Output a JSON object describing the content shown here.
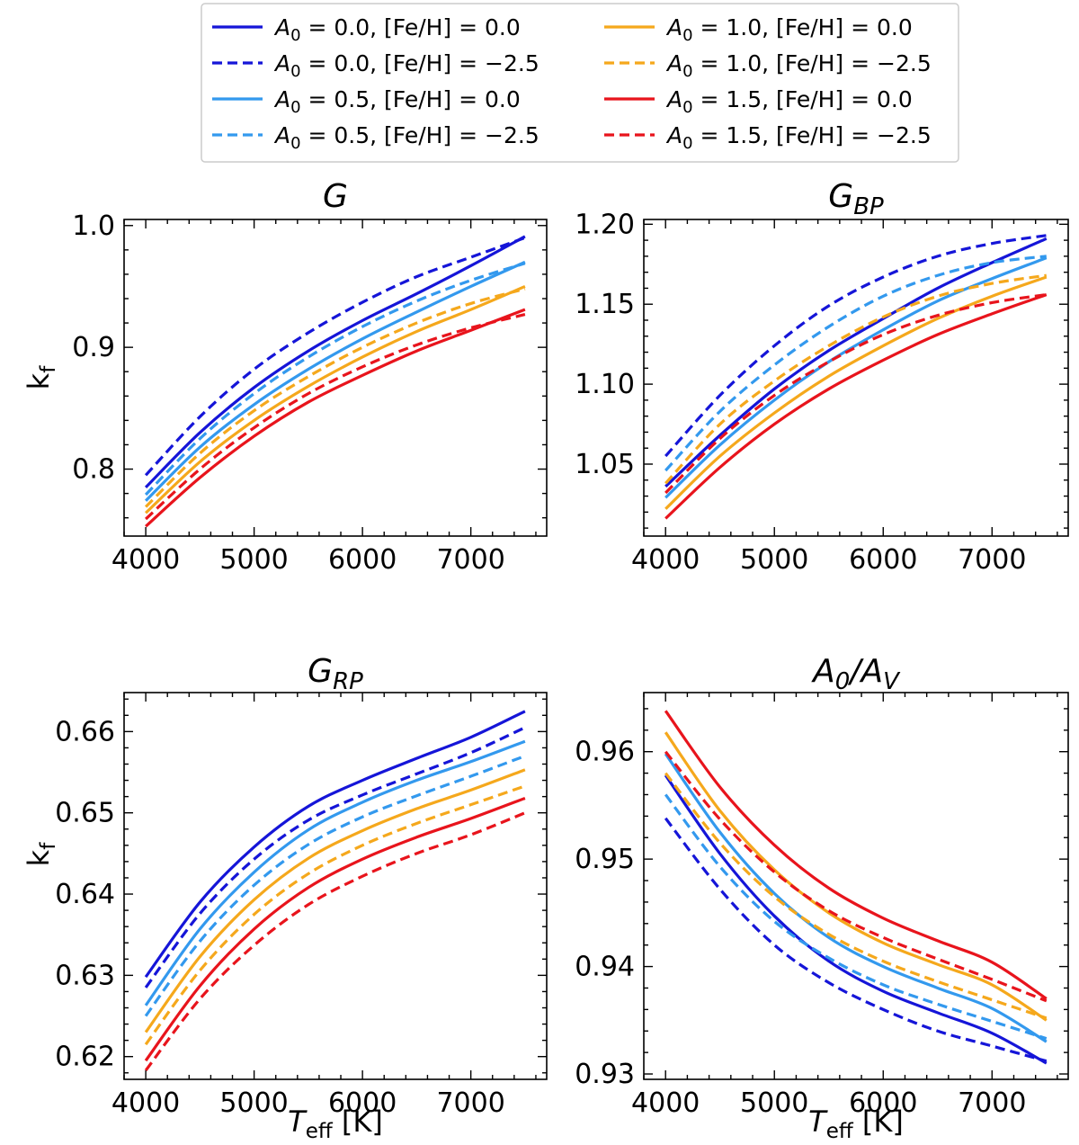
{
  "chart_data": [
    {
      "type": "line",
      "title": "G",
      "xlabel": "",
      "ylabel": "k_f",
      "xlim": [
        3800,
        7700
      ],
      "ylim": [
        0.745,
        1.005
      ],
      "xticks": [
        4000,
        5000,
        6000,
        7000
      ],
      "yticks": [
        0.8,
        0.9,
        1.0
      ],
      "xtick_labels": [
        "4000",
        "5000",
        "6000",
        "7000"
      ],
      "ytick_labels": [
        "0.8",
        "0.9",
        "1.0"
      ],
      "x": [
        4000,
        4500,
        5000,
        5500,
        6000,
        6500,
        7000,
        7500
      ],
      "series": [
        {
          "name": "A0 = 0.0, [Fe/H] = 0.0",
          "values": [
            0.785,
            0.83,
            0.867,
            0.897,
            0.922,
            0.944,
            0.967,
            0.991
          ]
        },
        {
          "name": "A0 = 0.0, [Fe/H] = −2.5",
          "values": [
            0.795,
            0.843,
            0.882,
            0.912,
            0.937,
            0.958,
            0.974,
            0.99
          ]
        },
        {
          "name": "A0 = 0.5, [Fe/H] = 0.0",
          "values": [
            0.774,
            0.818,
            0.853,
            0.882,
            0.907,
            0.929,
            0.95,
            0.97
          ]
        },
        {
          "name": "A0 = 0.5, [Fe/H] = −2.5",
          "values": [
            0.779,
            0.825,
            0.862,
            0.892,
            0.917,
            0.938,
            0.955,
            0.969
          ]
        },
        {
          "name": "A0 = 1.0, [Fe/H] = 0.0",
          "values": [
            0.764,
            0.806,
            0.84,
            0.868,
            0.892,
            0.913,
            0.931,
            0.95
          ]
        },
        {
          "name": "A0 = 1.0, [Fe/H] = −2.5",
          "values": [
            0.769,
            0.813,
            0.848,
            0.876,
            0.9,
            0.92,
            0.936,
            0.948
          ]
        },
        {
          "name": "A0 = 1.5, [Fe/H] = 0.0",
          "values": [
            0.753,
            0.793,
            0.827,
            0.855,
            0.877,
            0.897,
            0.914,
            0.931
          ]
        },
        {
          "name": "A0 = 1.5, [Fe/H] = −2.5",
          "values": [
            0.759,
            0.8,
            0.834,
            0.862,
            0.884,
            0.902,
            0.916,
            0.927
          ]
        }
      ]
    },
    {
      "type": "line",
      "title": "G_BP",
      "xlabel": "",
      "ylabel": "",
      "xlim": [
        3800,
        7700
      ],
      "ylim": [
        1.005,
        1.203
      ],
      "xticks": [
        4000,
        5000,
        6000,
        7000
      ],
      "yticks": [
        1.05,
        1.1,
        1.15,
        1.2
      ],
      "xtick_labels": [
        "4000",
        "5000",
        "6000",
        "7000"
      ],
      "ytick_labels": [
        "1.05",
        "1.10",
        "1.15",
        "1.20"
      ],
      "x": [
        4000,
        4500,
        5000,
        5500,
        6000,
        6500,
        7000,
        7500
      ],
      "series": [
        {
          "name": "A0 = 0.0, [Fe/H] = 0.0",
          "values": [
            1.036,
            1.068,
            1.097,
            1.121,
            1.141,
            1.16,
            1.176,
            1.191
          ]
        },
        {
          "name": "A0 = 0.0, [Fe/H] = −2.5",
          "values": [
            1.055,
            1.093,
            1.124,
            1.149,
            1.167,
            1.18,
            1.188,
            1.193
          ]
        },
        {
          "name": "A0 = 0.5, [Fe/H] = 0.0",
          "values": [
            1.029,
            1.062,
            1.09,
            1.114,
            1.134,
            1.152,
            1.166,
            1.179
          ]
        },
        {
          "name": "A0 = 0.5, [Fe/H] = −2.5",
          "values": [
            1.046,
            1.083,
            1.112,
            1.136,
            1.155,
            1.168,
            1.176,
            1.18
          ]
        },
        {
          "name": "A0 = 1.0, [Fe/H] = 0.0",
          "values": [
            1.022,
            1.055,
            1.082,
            1.105,
            1.124,
            1.141,
            1.155,
            1.167
          ]
        },
        {
          "name": "A0 = 1.0, [Fe/H] = −2.5",
          "values": [
            1.038,
            1.075,
            1.102,
            1.124,
            1.142,
            1.155,
            1.163,
            1.168
          ]
        },
        {
          "name": "A0 = 1.5, [Fe/H] = 0.0",
          "values": [
            1.016,
            1.048,
            1.075,
            1.097,
            1.115,
            1.131,
            1.144,
            1.156
          ]
        },
        {
          "name": "A0 = 1.5, [Fe/H] = −2.5",
          "values": [
            1.032,
            1.066,
            1.093,
            1.114,
            1.131,
            1.143,
            1.151,
            1.156
          ]
        }
      ]
    },
    {
      "type": "line",
      "title": "G_RP",
      "xlabel": "T_eff [K]",
      "ylabel": "k_f",
      "xlim": [
        3800,
        7700
      ],
      "ylim": [
        0.6172,
        0.6648
      ],
      "xticks": [
        4000,
        5000,
        6000,
        7000
      ],
      "yticks": [
        0.62,
        0.63,
        0.64,
        0.65,
        0.66
      ],
      "xtick_labels": [
        "4000",
        "5000",
        "6000",
        "7000"
      ],
      "ytick_labels": [
        "0.62",
        "0.63",
        "0.64",
        "0.65",
        "0.66"
      ],
      "x": [
        4000,
        4500,
        5000,
        5500,
        6000,
        6500,
        7000,
        7500
      ],
      "series": [
        {
          "name": "A0 = 0.0, [Fe/H] = 0.0",
          "values": [
            0.6298,
            0.639,
            0.6458,
            0.6508,
            0.654,
            0.6567,
            0.6593,
            0.6625
          ]
        },
        {
          "name": "A0 = 0.0, [Fe/H] = −2.5",
          "values": [
            0.6285,
            0.6376,
            0.6443,
            0.6491,
            0.6522,
            0.6548,
            0.6574,
            0.6605
          ]
        },
        {
          "name": "A0 = 0.5, [Fe/H] = 0.0",
          "values": [
            0.6263,
            0.6357,
            0.6427,
            0.6479,
            0.6513,
            0.654,
            0.6563,
            0.6588
          ]
        },
        {
          "name": "A0 = 0.5, [Fe/H] = −2.5",
          "values": [
            0.625,
            0.6342,
            0.6411,
            0.6461,
            0.6495,
            0.6521,
            0.6545,
            0.657
          ]
        },
        {
          "name": "A0 = 1.0, [Fe/H] = 0.0",
          "values": [
            0.623,
            0.6323,
            0.6393,
            0.6444,
            0.6478,
            0.6505,
            0.6528,
            0.6553
          ]
        },
        {
          "name": "A0 = 1.0, [Fe/H] = −2.5",
          "values": [
            0.6215,
            0.6306,
            0.6375,
            0.6425,
            0.646,
            0.6487,
            0.651,
            0.6533
          ]
        },
        {
          "name": "A0 = 1.5, [Fe/H] = 0.0",
          "values": [
            0.6195,
            0.6287,
            0.6357,
            0.6408,
            0.6443,
            0.647,
            0.6493,
            0.6518
          ]
        },
        {
          "name": "A0 = 1.5, [Fe/H] = −2.5",
          "values": [
            0.6183,
            0.6271,
            0.6337,
            0.6387,
            0.6422,
            0.645,
            0.6473,
            0.65
          ]
        }
      ]
    },
    {
      "type": "line",
      "title": "A_0/A_V",
      "xlabel": "T_eff [K]",
      "ylabel": "",
      "xlim": [
        3800,
        7700
      ],
      "ylim": [
        0.9295,
        0.9655
      ],
      "xticks": [
        4000,
        5000,
        6000,
        7000
      ],
      "yticks": [
        0.93,
        0.94,
        0.95,
        0.96
      ],
      "xtick_labels": [
        "4000",
        "5000",
        "6000",
        "7000"
      ],
      "ytick_labels": [
        "0.93",
        "0.94",
        "0.95",
        "0.96"
      ],
      "x": [
        4000,
        4500,
        5000,
        5500,
        6000,
        6500,
        7000,
        7500
      ],
      "series": [
        {
          "name": "A0 = 0.0, [Fe/H] = 0.0",
          "values": [
            0.9578,
            0.9505,
            0.9447,
            0.9405,
            0.9377,
            0.9357,
            0.9338,
            0.931
          ]
        },
        {
          "name": "A0 = 0.0, [Fe/H] = −2.5",
          "values": [
            0.9538,
            0.9472,
            0.942,
            0.9385,
            0.936,
            0.934,
            0.9326,
            0.9312
          ]
        },
        {
          "name": "A0 = 0.5, [Fe/H] = 0.0",
          "values": [
            0.9598,
            0.9525,
            0.9468,
            0.9427,
            0.94,
            0.938,
            0.9361,
            0.933
          ]
        },
        {
          "name": "A0 = 0.5, [Fe/H] = −2.5",
          "values": [
            0.956,
            0.9493,
            0.9442,
            0.9408,
            0.9383,
            0.9365,
            0.9349,
            0.9333
          ]
        },
        {
          "name": "A0 = 1.0, [Fe/H] = 0.0",
          "values": [
            0.9618,
            0.9545,
            0.949,
            0.945,
            0.9422,
            0.9402,
            0.9383,
            0.935
          ]
        },
        {
          "name": "A0 = 1.0, [Fe/H] = −2.5",
          "values": [
            0.958,
            0.9515,
            0.9465,
            0.943,
            0.9405,
            0.9386,
            0.9369,
            0.9352
          ]
        },
        {
          "name": "A0 = 1.5, [Fe/H] = 0.0",
          "values": [
            0.9638,
            0.9567,
            0.9513,
            0.9473,
            0.9445,
            0.9424,
            0.9404,
            0.937
          ]
        },
        {
          "name": "A0 = 1.5, [Fe/H] = −2.5",
          "values": [
            0.96,
            0.9537,
            0.9488,
            0.9452,
            0.9427,
            0.9407,
            0.9388,
            0.9368
          ]
        }
      ]
    }
  ],
  "legend": {
    "location": "top-center",
    "entries": [
      {
        "a0": "0.0",
        "feh": "0.0",
        "color": "#1515d8",
        "style": "solid"
      },
      {
        "a0": "0.0",
        "feh": "−2.5",
        "color": "#1515d8",
        "style": "dashed"
      },
      {
        "a0": "0.5",
        "feh": "0.0",
        "color": "#3399ee",
        "style": "solid"
      },
      {
        "a0": "0.5",
        "feh": "−2.5",
        "color": "#3399ee",
        "style": "dashed"
      },
      {
        "a0": "1.0",
        "feh": "0.0",
        "color": "#f5a81c",
        "style": "solid"
      },
      {
        "a0": "1.0",
        "feh": "−2.5",
        "color": "#f5a81c",
        "style": "dashed"
      },
      {
        "a0": "1.5",
        "feh": "0.0",
        "color": "#e8141c",
        "style": "solid"
      },
      {
        "a0": "1.5",
        "feh": "−2.5",
        "color": "#e8141c",
        "style": "dashed"
      }
    ]
  },
  "series_colors": [
    "#1515d8",
    "#1515d8",
    "#3399ee",
    "#3399ee",
    "#f5a81c",
    "#f5a81c",
    "#e8141c",
    "#e8141c"
  ],
  "series_styles": [
    "solid",
    "dashed",
    "solid",
    "dashed",
    "solid",
    "dashed",
    "solid",
    "dashed"
  ]
}
